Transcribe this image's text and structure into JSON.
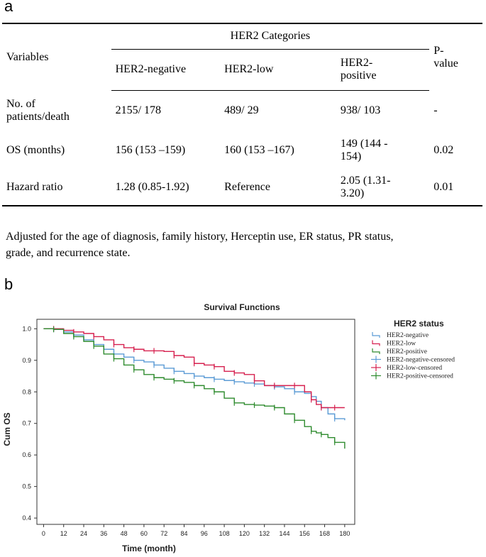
{
  "panel_a": {
    "label": "a",
    "table": {
      "variables_header": "Variables",
      "group_header": "HER2 Categories",
      "pvalue_header": [
        "P-",
        "value"
      ],
      "columns": [
        "HER2-negative",
        "HER2-low",
        [
          "HER2-",
          "positive"
        ]
      ],
      "rows": [
        {
          "label": [
            "No. of",
            "patients/death"
          ],
          "cells": [
            [
              "2155/ 178"
            ],
            [
              "489/ 29"
            ],
            [
              "938/ 103"
            ]
          ],
          "p": "-"
        },
        {
          "label": [
            "OS (months)"
          ],
          "cells": [
            [
              "156 (153 –159)"
            ],
            [
              "160 (153 –167)"
            ],
            [
              "149 (144 -",
              "154)"
            ]
          ],
          "p": "0.02"
        },
        {
          "label": [
            "Hazard ratio"
          ],
          "cells": [
            [
              "1.28 (0.85-1.92)"
            ],
            [
              "Reference"
            ],
            [
              "2.05 (1.31-",
              "3.20)"
            ]
          ],
          "p": "0.01"
        }
      ]
    },
    "footnote": [
      "Adjusted for the age of diagnosis, family history, Herceptin use, ER status, PR status,",
      "grade, and recurrence state."
    ]
  },
  "panel_b": {
    "label": "b",
    "colors": {
      "negative": "#5b9bd5",
      "low": "#d6204f",
      "positive": "#2e8b2e"
    }
  },
  "chart_data": {
    "type": "line",
    "title": "Survival Functions",
    "xlabel": "Time (month)",
    "ylabel": "Cum OS",
    "xlim": [
      -4,
      186
    ],
    "ylim": [
      0.38,
      1.03
    ],
    "xticks": [
      0,
      12,
      24,
      36,
      48,
      60,
      72,
      84,
      96,
      108,
      120,
      132,
      144,
      156,
      168,
      180
    ],
    "yticks": [
      0.4,
      0.5,
      0.6,
      0.7,
      0.8,
      0.9,
      1.0
    ],
    "ytick_labels": [
      "0.4",
      "0.5",
      "0.6",
      "0.7",
      "0.8",
      "0.9",
      "1.0"
    ],
    "legend_title": "HER2 status",
    "legend_position": "top-right",
    "legend": [
      "HER2-negative",
      "HER2-low",
      "HER2-positive",
      "HER2-negative-censored",
      "HER2-low-censored",
      "HER2-positive-censored"
    ],
    "series": [
      {
        "name": "HER2-negative",
        "color": "#5b9bd5",
        "x": [
          0,
          6,
          12,
          18,
          24,
          30,
          36,
          42,
          48,
          54,
          60,
          66,
          72,
          78,
          84,
          90,
          96,
          102,
          108,
          114,
          120,
          126,
          132,
          138,
          144,
          150,
          156,
          160,
          163,
          166,
          170,
          174,
          180
        ],
        "y": [
          1.0,
          0.998,
          0.99,
          0.98,
          0.965,
          0.95,
          0.935,
          0.92,
          0.91,
          0.9,
          0.895,
          0.885,
          0.875,
          0.865,
          0.858,
          0.85,
          0.845,
          0.84,
          0.836,
          0.832,
          0.828,
          0.825,
          0.82,
          0.816,
          0.81,
          0.8,
          0.795,
          0.785,
          0.77,
          0.75,
          0.73,
          0.715,
          0.71
        ]
      },
      {
        "name": "HER2-low",
        "color": "#d6204f",
        "x": [
          0,
          6,
          12,
          18,
          24,
          30,
          36,
          42,
          48,
          54,
          60,
          66,
          72,
          78,
          84,
          90,
          96,
          102,
          108,
          114,
          120,
          126,
          132,
          138,
          144,
          150,
          156,
          160,
          163,
          166,
          170,
          174,
          180
        ],
        "y": [
          1.0,
          1.0,
          0.995,
          0.99,
          0.985,
          0.975,
          0.965,
          0.95,
          0.94,
          0.935,
          0.93,
          0.93,
          0.928,
          0.915,
          0.91,
          0.89,
          0.885,
          0.88,
          0.865,
          0.86,
          0.855,
          0.835,
          0.82,
          0.82,
          0.82,
          0.82,
          0.8,
          0.775,
          0.76,
          0.75,
          0.75,
          0.75,
          0.75
        ]
      },
      {
        "name": "HER2-positive",
        "color": "#2e8b2e",
        "x": [
          0,
          6,
          12,
          18,
          24,
          30,
          36,
          42,
          48,
          54,
          60,
          66,
          72,
          78,
          84,
          90,
          96,
          102,
          108,
          114,
          120,
          126,
          132,
          138,
          144,
          150,
          156,
          160,
          163,
          166,
          170,
          174,
          180
        ],
        "y": [
          1.0,
          0.998,
          0.985,
          0.975,
          0.96,
          0.945,
          0.92,
          0.905,
          0.885,
          0.87,
          0.855,
          0.845,
          0.84,
          0.835,
          0.83,
          0.82,
          0.81,
          0.8,
          0.78,
          0.765,
          0.76,
          0.758,
          0.755,
          0.75,
          0.73,
          0.71,
          0.69,
          0.675,
          0.67,
          0.665,
          0.655,
          0.64,
          0.62
        ]
      }
    ]
  }
}
